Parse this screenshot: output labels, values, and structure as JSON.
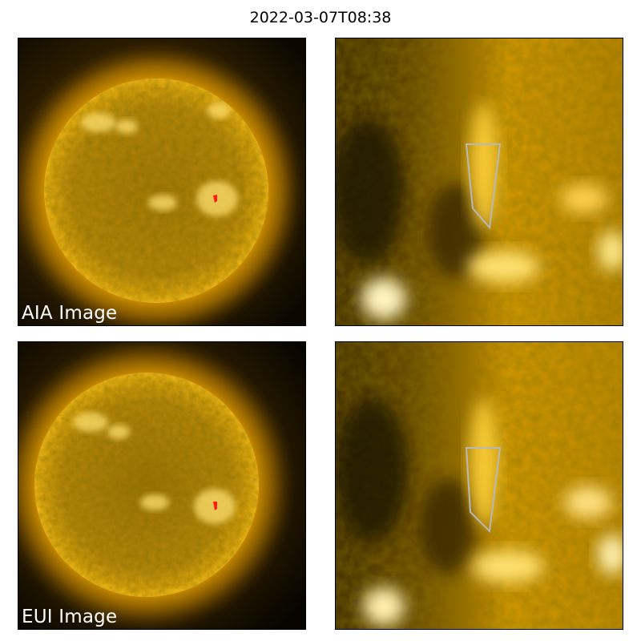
{
  "figure": {
    "title": "2022-03-07T08:38"
  },
  "panels": {
    "aia_full": {
      "label": "AIA Image",
      "marker_color": "#ff1a1a"
    },
    "aia_zoom": {
      "outline_color": "#b8b8b8"
    },
    "eui_full": {
      "label": "EUI Image",
      "marker_color": "#ff1a1a"
    },
    "eui_zoom": {
      "outline_color": "#b8b8b8"
    }
  },
  "colors": {
    "sun_core": "#c8960a",
    "limb": "#ffb300",
    "bright": "#fff2b0",
    "background": "#000000"
  }
}
